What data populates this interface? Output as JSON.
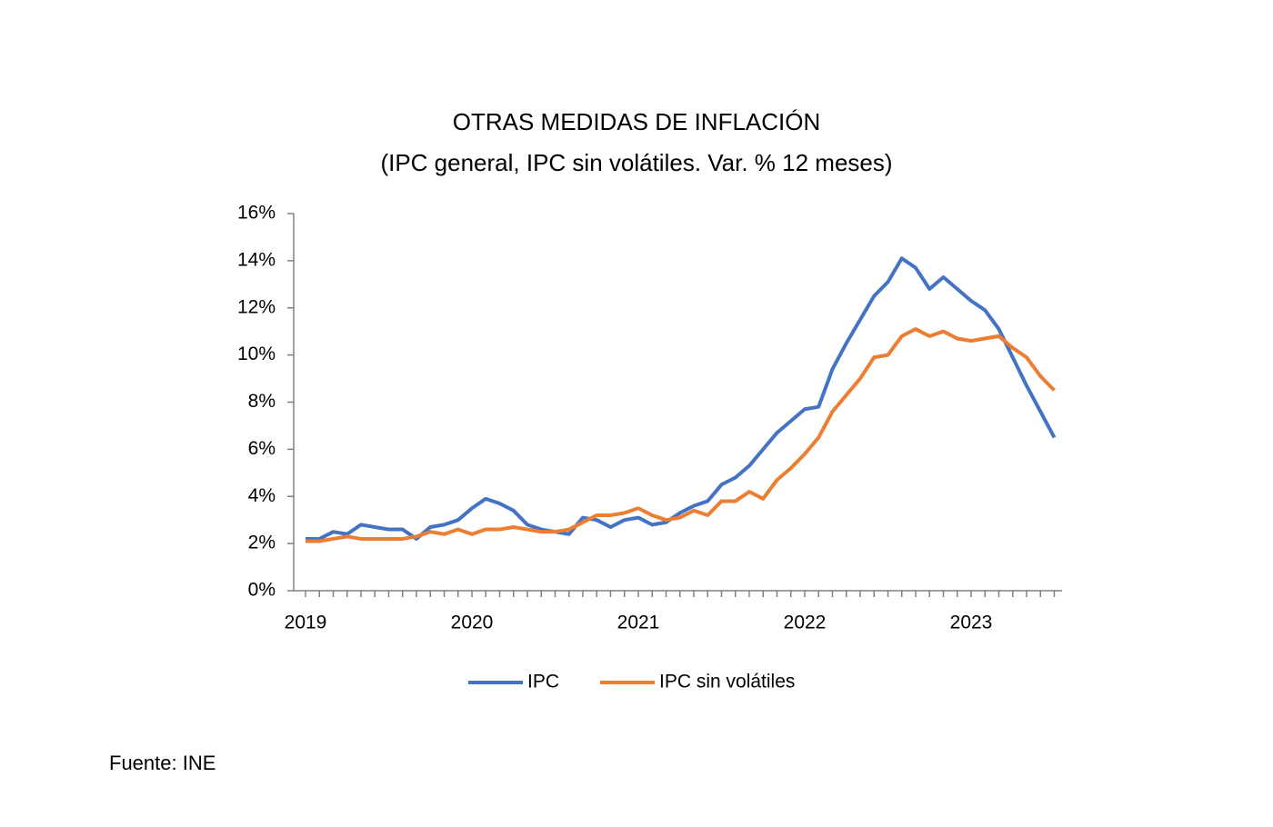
{
  "chart_data": {
    "type": "line",
    "title": "OTRAS MEDIDAS DE INFLACIÓN",
    "subtitle": "(IPC general, IPC sin volátiles.  Var. % 12 meses)",
    "source": "Fuente: INE",
    "categories": [
      "2019",
      null,
      null,
      null,
      null,
      null,
      null,
      null,
      null,
      null,
      null,
      null,
      "2020",
      null,
      null,
      null,
      null,
      null,
      null,
      null,
      null,
      null,
      null,
      null,
      "2021",
      null,
      null,
      null,
      null,
      null,
      null,
      null,
      null,
      null,
      null,
      null,
      "2022",
      null,
      null,
      null,
      null,
      null,
      null,
      null,
      null,
      null,
      null,
      null,
      "2023",
      null,
      null,
      null,
      null,
      null,
      null
    ],
    "series": [
      {
        "name": "IPC",
        "color": "#4472c4",
        "values": [
          2.2,
          2.2,
          2.5,
          2.4,
          2.8,
          2.7,
          2.6,
          2.6,
          2.2,
          2.7,
          2.8,
          3.0,
          3.5,
          3.9,
          3.7,
          3.4,
          2.8,
          2.6,
          2.5,
          2.4,
          3.1,
          3.0,
          2.7,
          3.0,
          3.1,
          2.8,
          2.9,
          3.3,
          3.6,
          3.8,
          4.5,
          4.8,
          5.3,
          6.0,
          6.7,
          7.2,
          7.7,
          7.8,
          9.4,
          10.5,
          11.5,
          12.5,
          13.1,
          14.1,
          13.7,
          12.8,
          13.3,
          12.8,
          12.3,
          11.9,
          11.1,
          9.9,
          8.7,
          7.6,
          6.5
        ]
      },
      {
        "name": "IPC sin volátiles",
        "color": "#ed7d31",
        "values": [
          2.1,
          2.1,
          2.2,
          2.3,
          2.2,
          2.2,
          2.2,
          2.2,
          2.3,
          2.5,
          2.4,
          2.6,
          2.4,
          2.6,
          2.6,
          2.7,
          2.6,
          2.5,
          2.5,
          2.6,
          2.9,
          3.2,
          3.2,
          3.3,
          3.5,
          3.2,
          3.0,
          3.1,
          3.4,
          3.2,
          3.8,
          3.8,
          4.2,
          3.9,
          4.7,
          5.2,
          5.8,
          6.5,
          7.6,
          8.3,
          9.0,
          9.9,
          10.0,
          10.8,
          11.1,
          10.8,
          11.0,
          10.7,
          10.6,
          10.7,
          10.8,
          10.3,
          9.9,
          9.1,
          8.5
        ]
      }
    ],
    "ylim": [
      0,
      16
    ],
    "yticks": [
      {
        "value": 0,
        "label": "0%"
      },
      {
        "value": 2,
        "label": "2%"
      },
      {
        "value": 4,
        "label": "4%"
      },
      {
        "value": 6,
        "label": "6%"
      },
      {
        "value": 8,
        "label": "8%"
      },
      {
        "value": 10,
        "label": "10%"
      },
      {
        "value": 12,
        "label": "12%"
      },
      {
        "value": 14,
        "label": "14%"
      },
      {
        "value": 16,
        "label": "16%"
      }
    ],
    "grid": false
  }
}
